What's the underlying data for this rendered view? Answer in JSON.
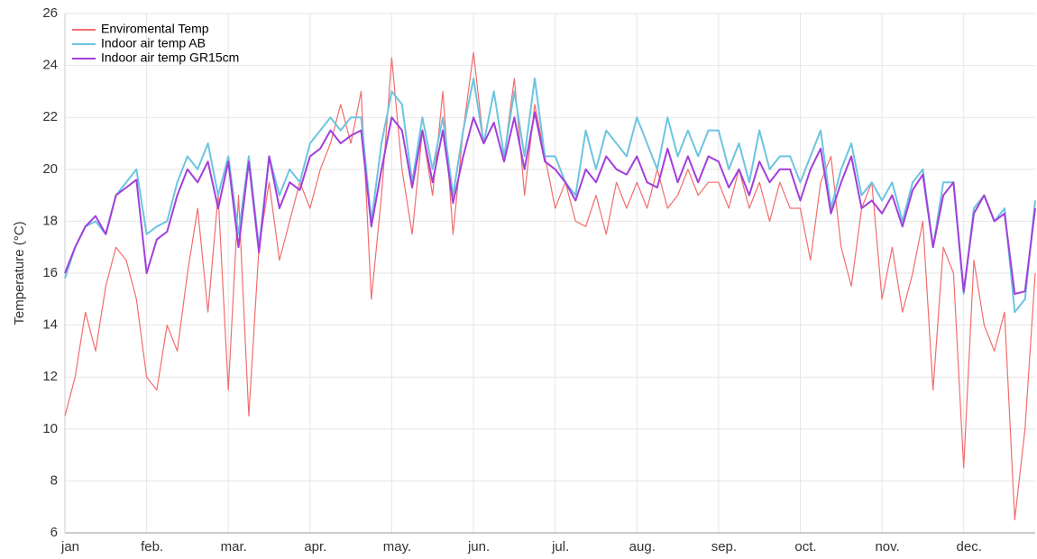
{
  "chart_data": {
    "type": "line",
    "y_label": "Temperature (°C)",
    "categories": [
      "jan",
      null,
      null,
      null,
      null,
      null,
      null,
      null,
      "feb.",
      null,
      null,
      null,
      null,
      null,
      null,
      null,
      "mar.",
      null,
      null,
      null,
      null,
      null,
      null,
      null,
      "apr.",
      null,
      null,
      null,
      null,
      null,
      null,
      null,
      "may.",
      null,
      null,
      null,
      null,
      null,
      null,
      null,
      "jun.",
      null,
      null,
      null,
      null,
      null,
      null,
      null,
      "jul.",
      null,
      null,
      null,
      null,
      null,
      null,
      null,
      "aug.",
      null,
      null,
      null,
      null,
      null,
      null,
      null,
      "sep.",
      null,
      null,
      null,
      null,
      null,
      null,
      null,
      "oct.",
      null,
      null,
      null,
      null,
      null,
      null,
      null,
      "nov.",
      null,
      null,
      null,
      null,
      null,
      null,
      null,
      "dec.",
      null,
      null,
      null,
      null,
      null,
      null,
      null
    ],
    "series": [
      {
        "name": "Enviromental Temp",
        "color": "#f26d6d",
        "values": [
          10.5,
          12,
          14.5,
          13,
          15.5,
          17,
          16.5,
          15,
          12,
          11.5,
          14,
          13,
          16,
          18.5,
          14.5,
          19,
          11.5,
          19,
          10.5,
          17,
          19.5,
          16.5,
          18,
          19.5,
          18.5,
          20,
          21,
          22.5,
          21,
          23,
          15,
          19,
          24.3,
          20,
          17.5,
          21.5,
          19,
          23,
          17.5,
          21.5,
          24.5,
          21,
          23,
          20.5,
          23.5,
          19,
          22.5,
          20.5,
          18.5,
          19.5,
          18,
          17.8,
          19,
          17.5,
          19.5,
          18.5,
          19.5,
          18.5,
          20,
          18.5,
          19,
          20,
          19,
          19.5,
          19.5,
          18.5,
          20,
          18.5,
          19.5,
          18,
          19.5,
          18.5,
          18.5,
          16.5,
          19.5,
          20.5,
          17,
          15.5,
          18.5,
          19.5,
          15,
          17,
          14.5,
          16,
          18,
          11.5,
          17,
          16,
          8.5,
          16.5,
          14,
          13,
          14.5,
          6.5,
          10,
          16
        ]
      },
      {
        "name": "Indoor air temp AB",
        "color": "#6cc5e0",
        "values": [
          15.8,
          17,
          17.8,
          18,
          17.5,
          19,
          19.5,
          20,
          17.5,
          17.8,
          18,
          19.5,
          20.5,
          20,
          21,
          19,
          20.5,
          17.5,
          20.5,
          17,
          20.5,
          19,
          20,
          19.5,
          21,
          21.5,
          22,
          21.5,
          22,
          22,
          18,
          21,
          23,
          22.5,
          19.5,
          22,
          20,
          22,
          19,
          21.5,
          23.5,
          21,
          23,
          20.5,
          23,
          20.5,
          23.5,
          20.5,
          20.5,
          19.5,
          19,
          21.5,
          20,
          21.5,
          21,
          20.5,
          22,
          21,
          20,
          22,
          20.5,
          21.5,
          20.5,
          21.5,
          21.5,
          20,
          21,
          19.5,
          21.5,
          20,
          20.5,
          20.5,
          19.5,
          20.5,
          21.5,
          18.5,
          20,
          21,
          19,
          19.5,
          18.8,
          19.5,
          18,
          19.5,
          20,
          17,
          19.5,
          19.5,
          15.2,
          18.5,
          19,
          18,
          18.5,
          14.5,
          15,
          18.8
        ]
      },
      {
        "name": "Indoor air temp GR15cm",
        "color": "#a23fdb",
        "values": [
          16,
          17,
          17.8,
          18.2,
          17.5,
          19,
          19.3,
          19.6,
          16,
          17.3,
          17.6,
          19,
          20,
          19.5,
          20.3,
          18.5,
          20.3,
          17,
          20.3,
          16.8,
          20.5,
          18.5,
          19.5,
          19.2,
          20.5,
          20.8,
          21.5,
          21,
          21.3,
          21.5,
          17.8,
          20,
          22,
          21.5,
          19.3,
          21.5,
          19.5,
          21.5,
          18.7,
          20.5,
          22,
          21,
          21.8,
          20.3,
          22,
          20,
          22.2,
          20.3,
          20,
          19.5,
          18.8,
          20,
          19.5,
          20.5,
          20,
          19.8,
          20.5,
          19.5,
          19.3,
          20.8,
          19.5,
          20.5,
          19.5,
          20.5,
          20.3,
          19.3,
          20,
          19,
          20.3,
          19.5,
          20,
          20,
          18.8,
          20,
          20.8,
          18.3,
          19.5,
          20.5,
          18.5,
          18.8,
          18.3,
          19,
          17.8,
          19.2,
          19.8,
          17,
          19,
          19.5,
          15.3,
          18.3,
          19,
          18,
          18.3,
          15.2,
          15.3,
          18.5
        ]
      }
    ],
    "ylim": [
      6,
      26
    ],
    "yticks": [
      6,
      8,
      10,
      12,
      14,
      16,
      18,
      20,
      22,
      24,
      26
    ],
    "grid": true,
    "legend": "top-left"
  }
}
